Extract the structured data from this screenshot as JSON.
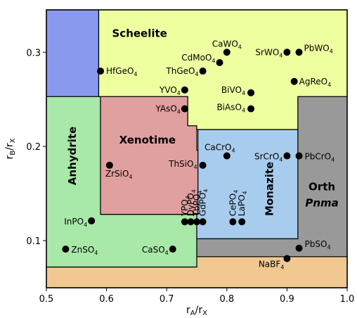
{
  "chart_data": {
    "type": "scatter",
    "title": "",
    "xlabel_main": "r",
    "xlabel_sub": "A",
    "xlabel_sep": "/r",
    "xlabel_sub2": "X",
    "ylabel_main": "r",
    "ylabel_sub": "B",
    "ylabel_sep": "/r",
    "ylabel_sub2": "X",
    "xlim": [
      0.5,
      1.0
    ],
    "ylim": [
      0.05,
      0.345
    ],
    "xticks": [
      0.5,
      0.6,
      0.7,
      0.8,
      0.9,
      1.0
    ],
    "xtick_labels": [
      "0.5",
      "0.6",
      "0.7",
      "0.8",
      "0.9",
      "1.0"
    ],
    "yticks": [
      0.1,
      0.2,
      0.3
    ],
    "ytick_labels": [
      "0.1",
      "0.2",
      "0.3"
    ],
    "regions": [
      {
        "key": "bottom",
        "color": "#f0c890",
        "points": [
          [
            0.5,
            0.05
          ],
          [
            1.0,
            0.05
          ],
          [
            1.0,
            0.083
          ],
          [
            0.75,
            0.083
          ],
          [
            0.75,
            0.072
          ],
          [
            0.5,
            0.072
          ]
        ]
      },
      {
        "key": "orth",
        "color": "#999999",
        "points": [
          [
            0.75,
            0.083
          ],
          [
            1.0,
            0.083
          ],
          [
            1.0,
            0.253
          ],
          [
            0.918,
            0.253
          ],
          [
            0.918,
            0.102
          ],
          [
            0.75,
            0.102
          ]
        ]
      },
      {
        "key": "anhydrite",
        "color": "#a8e8a8",
        "points": [
          [
            0.5,
            0.072
          ],
          [
            0.75,
            0.072
          ],
          [
            0.75,
            0.102
          ],
          [
            0.75,
            0.128
          ],
          [
            0.59,
            0.128
          ],
          [
            0.59,
            0.253
          ],
          [
            0.5,
            0.253
          ]
        ]
      },
      {
        "key": "blue",
        "color": "#8899ee",
        "points": [
          [
            0.5,
            0.253
          ],
          [
            0.587,
            0.253
          ],
          [
            0.587,
            0.345
          ],
          [
            0.5,
            0.345
          ]
        ]
      },
      {
        "key": "xenotime",
        "color": "#e0a0a0",
        "points": [
          [
            0.59,
            0.128
          ],
          [
            0.752,
            0.128
          ],
          [
            0.752,
            0.196
          ],
          [
            0.75,
            0.196
          ],
          [
            0.75,
            0.222
          ],
          [
            0.735,
            0.222
          ],
          [
            0.735,
            0.253
          ],
          [
            0.59,
            0.253
          ]
        ]
      },
      {
        "key": "monazite",
        "color": "#a8ccee",
        "points": [
          [
            0.75,
            0.102
          ],
          [
            0.918,
            0.102
          ],
          [
            0.918,
            0.218
          ],
          [
            0.752,
            0.218
          ],
          [
            0.752,
            0.196
          ],
          [
            0.752,
            0.128
          ],
          [
            0.75,
            0.128
          ]
        ]
      },
      {
        "key": "scheelite",
        "color": "#eeffa0",
        "points": [
          [
            0.587,
            0.253
          ],
          [
            0.735,
            0.253
          ],
          [
            0.735,
            0.222
          ],
          [
            0.75,
            0.222
          ],
          [
            0.75,
            0.218
          ],
          [
            0.918,
            0.218
          ],
          [
            0.918,
            0.253
          ],
          [
            1.0,
            0.253
          ],
          [
            1.0,
            0.345
          ],
          [
            0.587,
            0.345
          ]
        ]
      }
    ],
    "region_labels": [
      {
        "text": "Scheelite",
        "x": 0.655,
        "y": 0.32,
        "bold": true,
        "italic": false,
        "rotate": 0
      },
      {
        "text": "Xenotime",
        "x": 0.668,
        "y": 0.207,
        "bold": true,
        "italic": false,
        "rotate": 0
      },
      {
        "text": "Anhydrite",
        "x": 0.543,
        "y": 0.19,
        "bold": true,
        "italic": false,
        "rotate": -90
      },
      {
        "text": "Monazite",
        "x": 0.871,
        "y": 0.155,
        "bold": true,
        "italic": false,
        "rotate": -90
      },
      {
        "text": "Orth",
        "x": 0.958,
        "y": 0.157,
        "bold": true,
        "italic": false,
        "rotate": 0
      },
      {
        "text": "Pnma",
        "x": 0.958,
        "y": 0.14,
        "bold": true,
        "italic": true,
        "rotate": 0
      }
    ],
    "points": [
      {
        "label": "CaWO",
        "sub": "4",
        "x": 0.8,
        "y": 0.3,
        "anchor": "middle",
        "dx": 0,
        "dy": -8
      },
      {
        "label": "CdMoO",
        "sub": "4",
        "x": 0.788,
        "y": 0.289,
        "anchor": "end",
        "dx": -6,
        "dy": -3
      },
      {
        "label": "SrWO",
        "sub": "4",
        "x": 0.9,
        "y": 0.3,
        "anchor": "end",
        "dx": -6,
        "dy": 4
      },
      {
        "label": "PbWO",
        "sub": "4",
        "x": 0.92,
        "y": 0.3,
        "anchor": "start",
        "dx": 7,
        "dy": -2
      },
      {
        "label": "HfGeO",
        "sub": "4",
        "x": 0.59,
        "y": 0.28,
        "anchor": "start",
        "dx": 8,
        "dy": 4
      },
      {
        "label": "ThGeO",
        "sub": "4",
        "x": 0.76,
        "y": 0.28,
        "anchor": "end",
        "dx": -6,
        "dy": 4
      },
      {
        "label": "AgReO",
        "sub": "4",
        "x": 0.912,
        "y": 0.269,
        "anchor": "start",
        "dx": 7,
        "dy": 4
      },
      {
        "label": "YVO",
        "sub": "4",
        "x": 0.73,
        "y": 0.26,
        "anchor": "end",
        "dx": -6,
        "dy": 4
      },
      {
        "label": "BiVO",
        "sub": "4",
        "x": 0.84,
        "y": 0.257,
        "anchor": "end",
        "dx": -8,
        "dy": 0
      },
      {
        "label": "YAsO",
        "sub": "4",
        "x": 0.73,
        "y": 0.24,
        "anchor": "end",
        "dx": -6,
        "dy": 4
      },
      {
        "label": "BiAsO",
        "sub": "4",
        "x": 0.84,
        "y": 0.24,
        "anchor": "end",
        "dx": -8,
        "dy": 2
      },
      {
        "label": "CaCrO",
        "sub": "4",
        "x": 0.8,
        "y": 0.19,
        "anchor": "middle",
        "dx": -10,
        "dy": -8
      },
      {
        "label": "SrCrO",
        "sub": "4",
        "x": 0.9,
        "y": 0.19,
        "anchor": "end",
        "dx": -6,
        "dy": 5
      },
      {
        "label": "PbCrO",
        "sub": "4",
        "x": 0.92,
        "y": 0.19,
        "anchor": "start",
        "dx": 8,
        "dy": 5
      },
      {
        "label": "ZrSiO",
        "sub": "4",
        "x": 0.605,
        "y": 0.18,
        "anchor": "start",
        "dx": -6,
        "dy": 16
      },
      {
        "label": "ThSiO",
        "sub": "4",
        "x": 0.76,
        "y": 0.18,
        "anchor": "end",
        "dx": -8,
        "dy": 2
      },
      {
        "label": "InPO",
        "sub": "4",
        "x": 0.575,
        "y": 0.121,
        "anchor": "end",
        "dx": -6,
        "dy": 5
      },
      {
        "label": "YPO",
        "sub": "4",
        "x": 0.73,
        "y": 0.12,
        "anchor": "start",
        "dx": 4,
        "dy": -8,
        "rotate": -90
      },
      {
        "label": "DyPO",
        "sub": "4",
        "x": 0.74,
        "y": 0.12,
        "anchor": "start",
        "dx": 4,
        "dy": -8,
        "rotate": -90
      },
      {
        "label": "TbPO",
        "sub": "4",
        "x": 0.75,
        "y": 0.12,
        "anchor": "start",
        "dx": 4,
        "dy": -8,
        "rotate": -90
      },
      {
        "label": "GdPO",
        "sub": "4",
        "x": 0.76,
        "y": 0.12,
        "anchor": "start",
        "dx": 4,
        "dy": -8,
        "rotate": -90
      },
      {
        "label": "CePO",
        "sub": "4",
        "x": 0.81,
        "y": 0.12,
        "anchor": "start",
        "dx": 4,
        "dy": -8,
        "rotate": -90
      },
      {
        "label": "LaPO",
        "sub": "4",
        "x": 0.825,
        "y": 0.12,
        "anchor": "start",
        "dx": 4,
        "dy": -8,
        "rotate": -90
      },
      {
        "label": "ZnSO",
        "sub": "4",
        "x": 0.532,
        "y": 0.091,
        "anchor": "start",
        "dx": 8,
        "dy": 5
      },
      {
        "label": "CaSO",
        "sub": "4",
        "x": 0.71,
        "y": 0.091,
        "anchor": "end",
        "dx": -6,
        "dy": 5
      },
      {
        "label": "PbSO",
        "sub": "4",
        "x": 0.92,
        "y": 0.092,
        "anchor": "start",
        "dx": 8,
        "dy": -2
      },
      {
        "label": "NaBF",
        "sub": "4",
        "x": 0.9,
        "y": 0.081,
        "anchor": "end",
        "dx": -4,
        "dy": 12
      }
    ]
  }
}
